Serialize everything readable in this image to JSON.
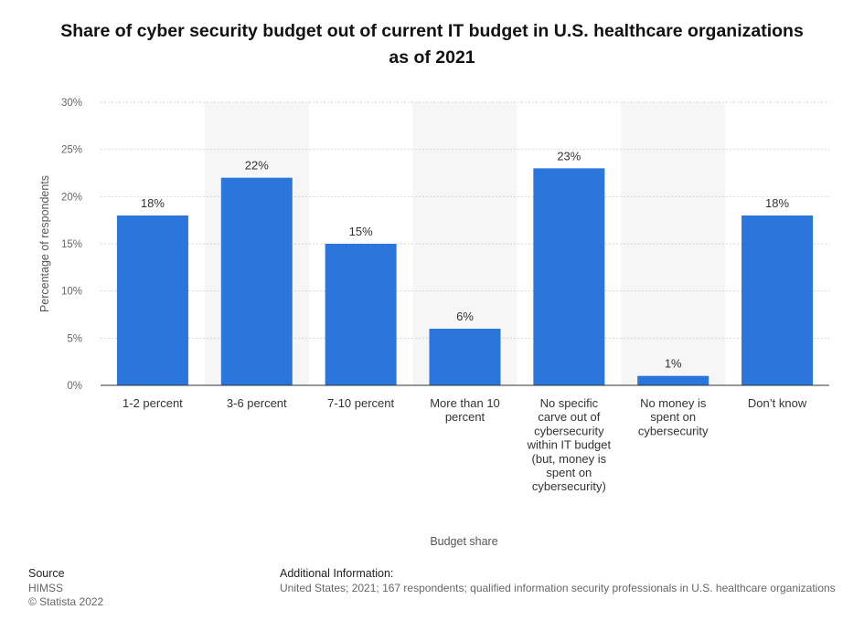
{
  "chart_data": {
    "type": "bar",
    "title": "Share of cyber security budget out of current IT budget in U.S. healthcare organizations as of 2021",
    "xlabel": "Budget share",
    "ylabel": "Percentage of respondents",
    "categories": [
      "1-2 percent",
      "3-6 percent",
      "7-10 percent",
      "More than 10 percent",
      "No specific carve out of cybersecurity within IT budget (but, money is spent on cybersecurity)",
      "No money is spent on cybersecurity",
      "Don’t know"
    ],
    "category_lines": [
      [
        "1-2 percent"
      ],
      [
        "3-6 percent"
      ],
      [
        "7-10 percent"
      ],
      [
        "More than 10",
        "percent"
      ],
      [
        "No specific",
        "carve out of",
        "cybersecurity",
        "within IT budget",
        "(but, money is",
        "spent on",
        "cybersecurity)"
      ],
      [
        "No money is",
        "spent on",
        "cybersecurity"
      ],
      [
        "Don’t know"
      ]
    ],
    "values": [
      18,
      22,
      15,
      6,
      23,
      1,
      18
    ],
    "value_labels": [
      "18%",
      "22%",
      "15%",
      "6%",
      "23%",
      "1%",
      "18%"
    ],
    "ylim": [
      0,
      30
    ],
    "yticks": [
      0,
      5,
      10,
      15,
      20,
      25,
      30
    ],
    "ytick_labels": [
      "0%",
      "5%",
      "10%",
      "15%",
      "20%",
      "25%",
      "30%"
    ],
    "grid": true,
    "legend": "none",
    "bar_color": "#2a76dd",
    "band_color": "#f6f6f6"
  },
  "footer": {
    "source_heading": "Source",
    "source_lines": [
      "HIMSS",
      "© Statista 2022"
    ],
    "additional_heading": "Additional Information:",
    "additional_text": "United States; 2021; 167 respondents; qualified information security professionals in U.S. healthcare organizations"
  }
}
